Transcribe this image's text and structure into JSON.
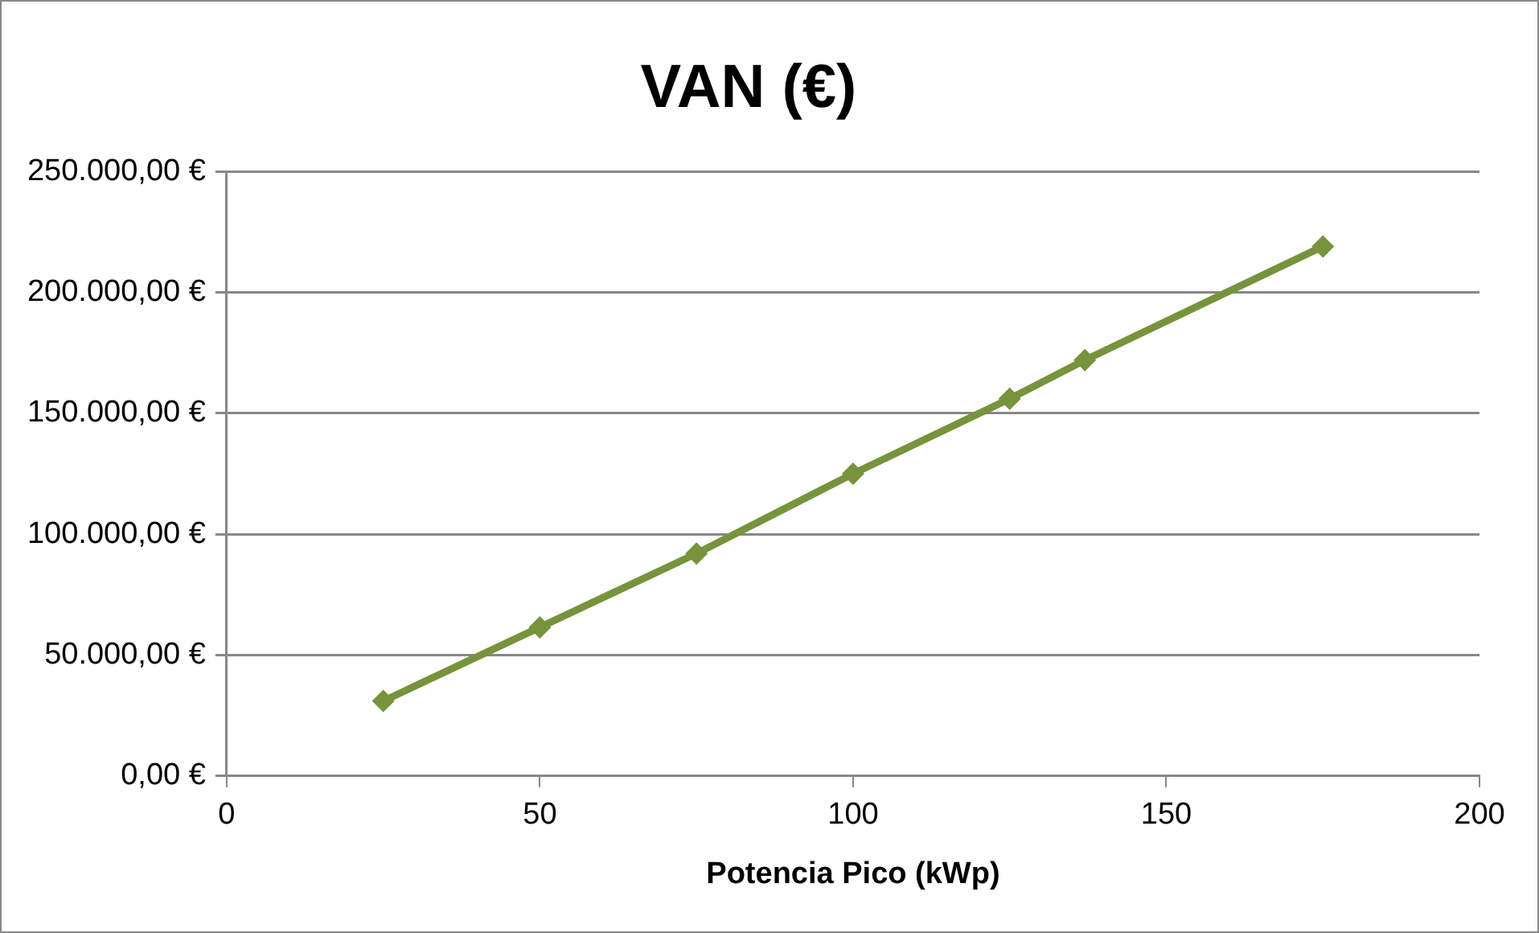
{
  "chart_data": {
    "type": "line",
    "title": "VAN (€)",
    "xlabel": "Potencia Pico (kWp)",
    "x": [
      25,
      50,
      75,
      100,
      125,
      137,
      175
    ],
    "series": [
      {
        "color": "#77933c",
        "values": [
          31000,
          61500,
          92000,
          125000,
          156000,
          172000,
          219000
        ]
      }
    ],
    "xlim": [
      0,
      200
    ],
    "xticks": [
      0,
      50,
      100,
      150,
      200
    ],
    "ylim": [
      0,
      250000
    ],
    "yticks": [
      {
        "value": 0,
        "label": "0,00 €"
      },
      {
        "value": 50000,
        "label": "50.000,00 €"
      },
      {
        "value": 100000,
        "label": "100.000,00 €"
      },
      {
        "value": 150000,
        "label": "150.000,00 €"
      },
      {
        "value": 200000,
        "label": "200.000,00 €"
      },
      {
        "value": 250000,
        "label": "250.000,00 €"
      }
    ],
    "grid": "y",
    "legend": false,
    "marker": "diamond",
    "line_style": "solid"
  }
}
